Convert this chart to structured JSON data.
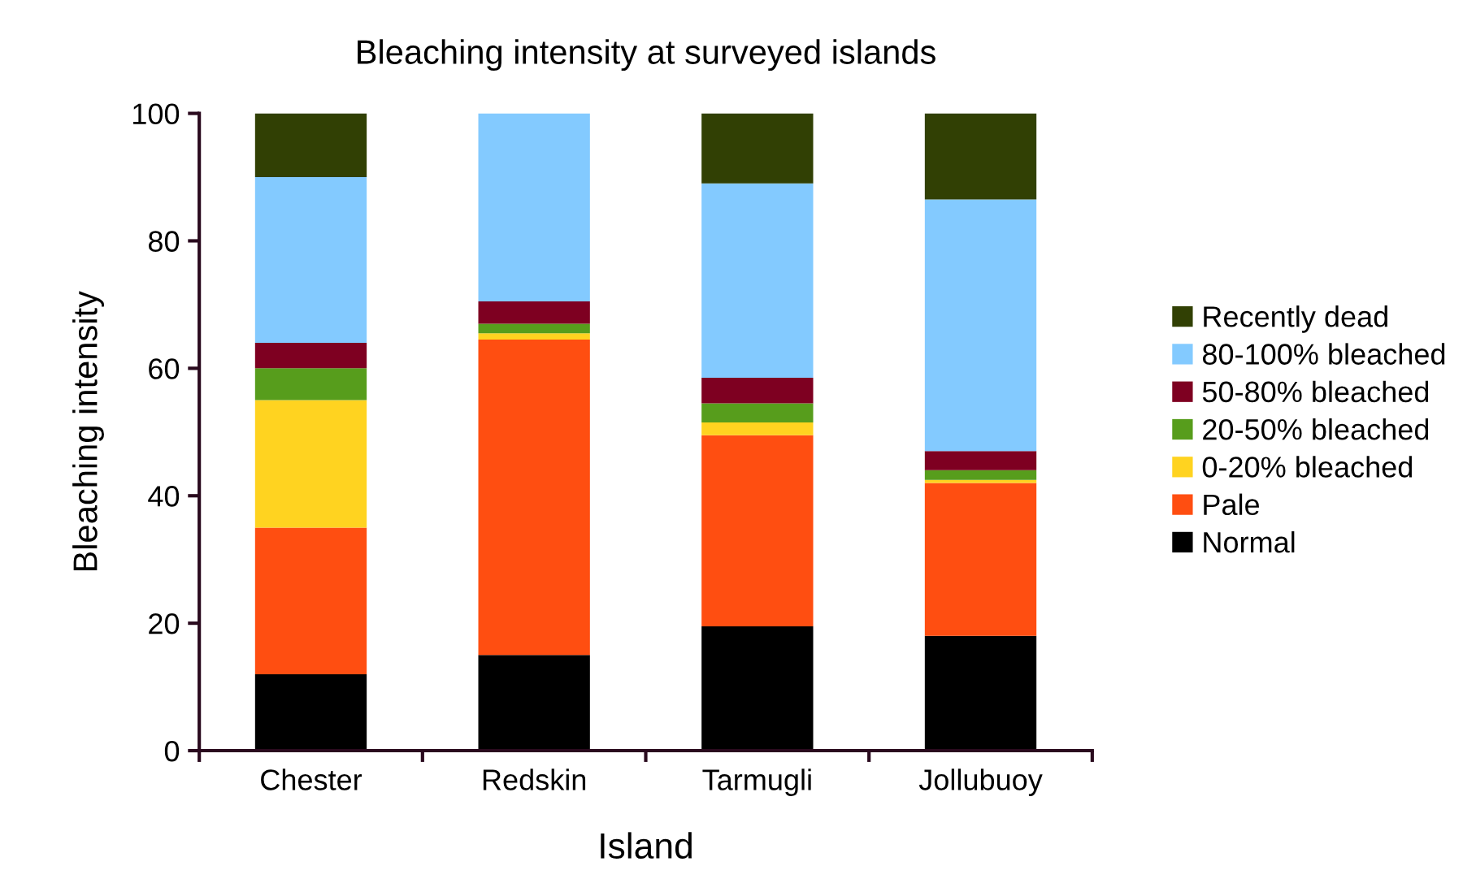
{
  "chart_data": {
    "type": "bar",
    "stacked": true,
    "title": "Bleaching intensity at surveyed islands",
    "xlabel": "Island",
    "ylabel": "Bleaching intensity",
    "categories": [
      "Chester",
      "Redskin",
      "Tarmugli",
      "Jollubuoy"
    ],
    "series": [
      {
        "name": "Normal",
        "color": "#000000",
        "values": [
          12,
          15,
          19.5,
          18
        ]
      },
      {
        "name": "Pale",
        "color": "#ff4e11",
        "values": [
          23,
          49.5,
          30,
          24
        ]
      },
      {
        "name": "0-20% bleached",
        "color": "#ffd320",
        "values": [
          20,
          1,
          2,
          0.5
        ]
      },
      {
        "name": "20-50% bleached",
        "color": "#579d1c",
        "values": [
          5,
          1.5,
          3,
          1.5
        ]
      },
      {
        "name": "50-80% bleached",
        "color": "#7e0021",
        "values": [
          4,
          3.5,
          4,
          3
        ]
      },
      {
        "name": "80-100% bleached",
        "color": "#83caff",
        "values": [
          26,
          29.5,
          30.5,
          39.5
        ]
      },
      {
        "name": "Recently dead",
        "color": "#314004",
        "values": [
          10,
          0,
          11,
          13.5
        ]
      }
    ],
    "ylim": [
      0,
      100
    ],
    "yticks": [
      0,
      20,
      40,
      60,
      80,
      100
    ],
    "grid": false,
    "legend": "right"
  }
}
